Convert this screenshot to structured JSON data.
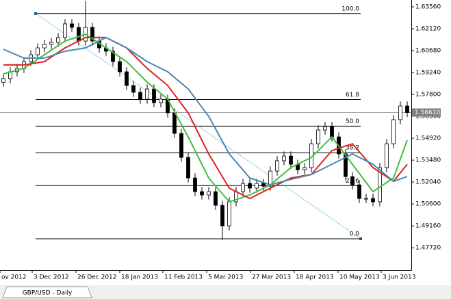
{
  "chart_data": {
    "type": "candlestick",
    "symbol_label": "GBP/USD - Daily",
    "up_color": "#ffffff",
    "down_color": "#000000",
    "xlim": [
      0,
      60.1
    ],
    "ylim": [
      1.4624,
      1.6401
    ],
    "xticks": [
      {
        "value": 0,
        "label": "ov 2012"
      },
      {
        "value": 4.7,
        "label": "3 Dec 2012"
      },
      {
        "value": 11.1,
        "label": "26 Dec 2012"
      },
      {
        "value": 17.5,
        "label": "18 Jan 2013"
      },
      {
        "value": 23.8,
        "label": "11 Feb 2013"
      },
      {
        "value": 30.2,
        "label": "5 Mar 2013"
      },
      {
        "value": 36.6,
        "label": "27 Mar 2013"
      },
      {
        "value": 43.0,
        "label": "18 Apr 2013"
      },
      {
        "value": 49.4,
        "label": "10 May 2013"
      },
      {
        "value": 55.7,
        "label": "3 Jun 2013"
      }
    ],
    "yticks": [
      {
        "value": 1.6356,
        "label": "1.63560"
      },
      {
        "value": 1.6212,
        "label": "1.62120"
      },
      {
        "value": 1.6068,
        "label": "1.60680"
      },
      {
        "value": 1.5924,
        "label": "1.59240"
      },
      {
        "value": 1.578,
        "label": "1.57800"
      },
      {
        "value": 1.5636,
        "label": "1.56360"
      },
      {
        "value": 1.5492,
        "label": "1.54920"
      },
      {
        "value": 1.5348,
        "label": "1.53480"
      },
      {
        "value": 1.5204,
        "label": "1.52040"
      },
      {
        "value": 1.506,
        "label": "1.50600"
      },
      {
        "value": 1.4916,
        "label": "1.49160"
      },
      {
        "value": 1.4772,
        "label": "1.47720"
      }
    ],
    "current_price": {
      "value": 1.5661,
      "label": "1.56610"
    },
    "x": [
      0.5,
      1.5,
      2.5,
      3.5,
      4.5,
      5.5,
      6.5,
      7.5,
      8.5,
      9.5,
      10.5,
      11.5,
      12.5,
      13.5,
      14.5,
      15.5,
      16.5,
      17.5,
      18.5,
      19.5,
      20.5,
      21.5,
      22.5,
      23.5,
      24.5,
      25.5,
      26.5,
      27.5,
      28.5,
      29.5,
      30.5,
      31.5,
      32.5,
      33.5,
      34.5,
      35.5,
      36.5,
      37.5,
      38.5,
      39.5,
      40.5,
      41.5,
      42.5,
      43.5,
      44.5,
      45.5,
      46.5,
      47.5,
      48.5,
      49.5,
      50.5,
      51.5,
      52.5,
      53.5,
      54.5,
      55.5,
      56.5,
      57.5,
      58.5,
      59.5
    ],
    "open": [
      1.586,
      1.5884,
      1.5929,
      1.5951,
      1.5996,
      1.6041,
      1.6086,
      1.6109,
      1.6122,
      1.6154,
      1.6244,
      1.6221,
      1.6131,
      1.6221,
      1.6131,
      1.6086,
      1.6064,
      1.5996,
      1.5929,
      1.5839,
      1.5794,
      1.5749,
      1.5816,
      1.5726,
      1.5749,
      1.5659,
      1.5524,
      1.5366,
      1.5231,
      1.5141,
      1.5119,
      1.5141,
      1.5051,
      1.4916,
      1.5074,
      1.5141,
      1.5195,
      1.5164,
      1.5195,
      1.5177,
      1.5276,
      1.5344,
      1.5375,
      1.5321,
      1.5285,
      1.5299,
      1.5456,
      1.5546,
      1.5569,
      1.5501,
      1.5389,
      1.524,
      1.5186,
      1.5096,
      1.5096,
      1.5074,
      1.5299,
      1.5456,
      1.5614,
      1.5704
    ],
    "high": [
      1.5914,
      1.5959,
      1.5981,
      1.6026,
      1.6071,
      1.6116,
      1.6139,
      1.6152,
      1.6184,
      1.6274,
      1.6274,
      1.6251,
      1.6395,
      1.6251,
      1.6161,
      1.6116,
      1.6094,
      1.6026,
      1.5959,
      1.5869,
      1.5824,
      1.5846,
      1.5846,
      1.5779,
      1.5779,
      1.5689,
      1.5554,
      1.5396,
      1.5261,
      1.5171,
      1.5171,
      1.5171,
      1.5081,
      1.5104,
      1.5171,
      1.5225,
      1.5225,
      1.5225,
      1.5225,
      1.5306,
      1.5374,
      1.5405,
      1.5405,
      1.5351,
      1.5329,
      1.5486,
      1.5576,
      1.5599,
      1.5599,
      1.5531,
      1.5419,
      1.527,
      1.5216,
      1.5126,
      1.5126,
      1.5329,
      1.5486,
      1.5644,
      1.5734,
      1.5734
    ],
    "low": [
      1.583,
      1.5854,
      1.5899,
      1.5921,
      1.5966,
      1.6011,
      1.6056,
      1.6079,
      1.6092,
      1.6124,
      1.6191,
      1.6101,
      1.6101,
      1.6101,
      1.6056,
      1.6034,
      1.5966,
      1.5899,
      1.5809,
      1.5764,
      1.5719,
      1.5719,
      1.5696,
      1.5696,
      1.5629,
      1.5494,
      1.5336,
      1.5201,
      1.5111,
      1.5089,
      1.5089,
      1.5021,
      1.4825,
      1.4886,
      1.5044,
      1.5111,
      1.5134,
      1.5134,
      1.5147,
      1.5147,
      1.5246,
      1.5314,
      1.5291,
      1.5255,
      1.5255,
      1.5269,
      1.5426,
      1.5516,
      1.5471,
      1.5359,
      1.521,
      1.5156,
      1.5066,
      1.5066,
      1.5044,
      1.5044,
      1.5269,
      1.5426,
      1.5584,
      1.5631
    ],
    "close": [
      1.5884,
      1.5929,
      1.5951,
      1.5996,
      1.6041,
      1.6086,
      1.6109,
      1.6122,
      1.6154,
      1.6244,
      1.6221,
      1.6131,
      1.6221,
      1.6131,
      1.6086,
      1.6064,
      1.5996,
      1.5929,
      1.5839,
      1.5794,
      1.5749,
      1.5816,
      1.5726,
      1.5749,
      1.5659,
      1.5524,
      1.5366,
      1.5231,
      1.5141,
      1.5119,
      1.5141,
      1.5051,
      1.4916,
      1.5074,
      1.5141,
      1.5195,
      1.5164,
      1.5195,
      1.5177,
      1.5276,
      1.5344,
      1.5375,
      1.5321,
      1.5285,
      1.5299,
      1.5456,
      1.5546,
      1.5569,
      1.5501,
      1.5389,
      1.524,
      1.5186,
      1.5096,
      1.5096,
      1.5074,
      1.5299,
      1.5456,
      1.5614,
      1.5704,
      1.5661
    ],
    "indicators": [
      {
        "color": "#3fbf3f",
        "x": [
          0.5,
          3.5,
          6.5,
          9.5,
          12.5,
          15.5,
          18.5,
          21.5,
          24.5,
          27.5,
          30.5,
          33.5,
          36.5,
          39.5,
          42.5,
          45.5,
          48.5,
          51.5,
          54.5,
          57.5,
          59.5
        ],
        "values": [
          1.5915,
          1.5951,
          1.6041,
          1.6131,
          1.6176,
          1.6086,
          1.5996,
          1.5861,
          1.5749,
          1.5501,
          1.5231,
          1.5074,
          1.5119,
          1.5186,
          1.5299,
          1.5366,
          1.5501,
          1.5321,
          1.5141,
          1.5231,
          1.5479
        ]
      },
      {
        "color": "#e02020",
        "x": [
          0.5,
          3.5,
          6.5,
          9.5,
          12.5,
          15.5,
          18.5,
          21.5,
          24.5,
          27.5,
          30.5,
          33.5,
          36.5,
          39.5,
          42.5,
          45.5,
          48.5,
          51.5,
          54.5,
          57.5,
          59.5
        ],
        "values": [
          1.5974,
          1.5974,
          1.5996,
          1.6086,
          1.6154,
          1.6154,
          1.6086,
          1.5951,
          1.5839,
          1.5659,
          1.5389,
          1.5164,
          1.5096,
          1.5164,
          1.5231,
          1.5254,
          1.5411,
          1.5456,
          1.5299,
          1.5209,
          1.5321
        ]
      },
      {
        "color": "#4a86b0",
        "x": [
          0.5,
          3.5,
          6.5,
          9.5,
          12.5,
          15.5,
          18.5,
          21.5,
          24.5,
          27.5,
          30.5,
          33.5,
          36.5,
          39.5,
          42.5,
          45.5,
          48.5,
          51.5,
          54.5,
          57.5,
          59.5
        ],
        "values": [
          1.6077,
          1.6019,
          1.6019,
          1.6064,
          1.6086,
          1.6154,
          1.6086,
          1.5996,
          1.5929,
          1.5816,
          1.5636,
          1.5389,
          1.5231,
          1.5186,
          1.5222,
          1.5254,
          1.5321,
          1.5389,
          1.5321,
          1.5209,
          1.524
        ]
      }
    ],
    "fibonacci": {
      "color": "#000000",
      "trend_color": "#3ab0d0",
      "x": [
        5.2,
        52.7
      ],
      "y": [
        1.6312,
        1.4831
      ],
      "levels": [
        {
          "value": 100,
          "label": "100.0"
        },
        61.8,
        {
          "value": 50,
          "label": "50.0"
        },
        38.2,
        23.6,
        {
          "value": 0,
          "label": "0.0"
        }
      ]
    }
  }
}
